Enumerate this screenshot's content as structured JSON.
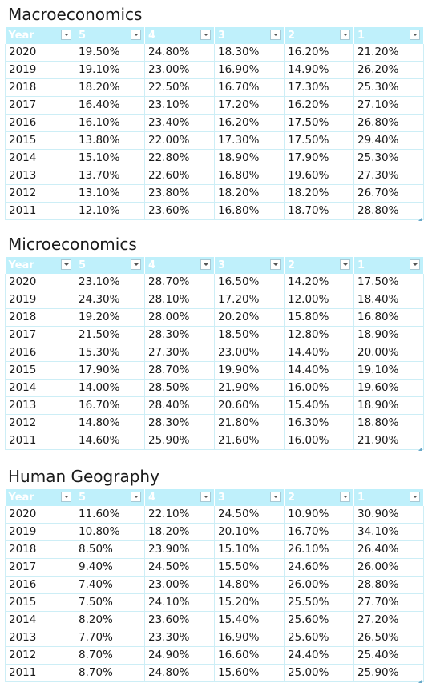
{
  "sections": [
    {
      "title": "Macroeconomics",
      "headers": [
        "Year",
        "5",
        "4",
        "3",
        "2",
        "1"
      ],
      "rows": [
        [
          "2020",
          "19.50%",
          "24.80%",
          "18.30%",
          "16.20%",
          "21.20%"
        ],
        [
          "2019",
          "19.10%",
          "23.00%",
          "16.90%",
          "14.90%",
          "26.20%"
        ],
        [
          "2018",
          "18.20%",
          "22.50%",
          "16.70%",
          "17.30%",
          "25.30%"
        ],
        [
          "2017",
          "16.40%",
          "23.10%",
          "17.20%",
          "16.20%",
          "27.10%"
        ],
        [
          "2016",
          "16.10%",
          "23.40%",
          "16.20%",
          "17.50%",
          "26.80%"
        ],
        [
          "2015",
          "13.80%",
          "22.00%",
          "17.30%",
          "17.50%",
          "29.40%"
        ],
        [
          "2014",
          "15.10%",
          "22.80%",
          "18.90%",
          "17.90%",
          "25.30%"
        ],
        [
          "2013",
          "13.70%",
          "22.60%",
          "16.80%",
          "19.60%",
          "27.30%"
        ],
        [
          "2012",
          "13.10%",
          "23.80%",
          "18.20%",
          "18.20%",
          "26.70%"
        ],
        [
          "2011",
          "12.10%",
          "23.60%",
          "16.80%",
          "18.70%",
          "28.80%"
        ]
      ]
    },
    {
      "title": "Microeconomics",
      "headers": [
        "Year",
        "5",
        "4",
        "3",
        "2",
        "1"
      ],
      "rows": [
        [
          "2020",
          "23.10%",
          "28.70%",
          "16.50%",
          "14.20%",
          "17.50%"
        ],
        [
          "2019",
          "24.30%",
          "28.10%",
          "17.20%",
          "12.00%",
          "18.40%"
        ],
        [
          "2018",
          "19.20%",
          "28.00%",
          "20.20%",
          "15.80%",
          "16.80%"
        ],
        [
          "2017",
          "21.50%",
          "28.30%",
          "18.50%",
          "12.80%",
          "18.90%"
        ],
        [
          "2016",
          "15.30%",
          "27.30%",
          "23.00%",
          "14.40%",
          "20.00%"
        ],
        [
          "2015",
          "17.90%",
          "28.70%",
          "19.90%",
          "14.40%",
          "19.10%"
        ],
        [
          "2014",
          "14.00%",
          "28.50%",
          "21.90%",
          "16.00%",
          "19.60%"
        ],
        [
          "2013",
          "16.70%",
          "28.40%",
          "20.60%",
          "15.40%",
          "18.90%"
        ],
        [
          "2012",
          "14.80%",
          "28.30%",
          "21.80%",
          "16.30%",
          "18.80%"
        ],
        [
          "2011",
          "14.60%",
          "25.90%",
          "21.60%",
          "16.00%",
          "21.90%"
        ]
      ]
    },
    {
      "title": "Human Geography",
      "headers": [
        "Year",
        "5",
        "4",
        "3",
        "2",
        "1"
      ],
      "rows": [
        [
          "2020",
          "11.60%",
          "22.10%",
          "24.50%",
          "10.90%",
          "30.90%"
        ],
        [
          "2019",
          "10.80%",
          "18.20%",
          "20.10%",
          "16.70%",
          "34.10%"
        ],
        [
          "2018",
          "8.50%",
          "23.90%",
          "15.10%",
          "26.10%",
          "26.40%"
        ],
        [
          "2017",
          "9.40%",
          "24.50%",
          "15.50%",
          "24.60%",
          "26.00%"
        ],
        [
          "2016",
          "7.40%",
          "23.00%",
          "14.80%",
          "26.00%",
          "28.80%"
        ],
        [
          "2015",
          "7.50%",
          "24.10%",
          "15.20%",
          "25.50%",
          "27.70%"
        ],
        [
          "2014",
          "8.20%",
          "23.60%",
          "15.40%",
          "25.60%",
          "27.20%"
        ],
        [
          "2013",
          "7.70%",
          "23.30%",
          "16.90%",
          "25.60%",
          "26.50%"
        ],
        [
          "2012",
          "8.70%",
          "24.90%",
          "16.60%",
          "24.40%",
          "25.40%"
        ],
        [
          "2011",
          "8.70%",
          "24.80%",
          "15.60%",
          "25.00%",
          "25.90%"
        ]
      ]
    }
  ],
  "colors": {
    "header_background": "#bff0fb",
    "grid_line": "#cdeef6"
  }
}
